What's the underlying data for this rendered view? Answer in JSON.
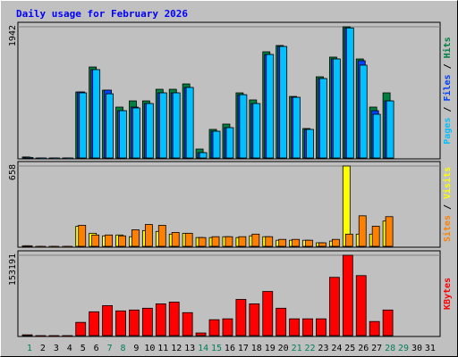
{
  "chart_data": {
    "type": "bar",
    "title": "Daily usage for February 2026",
    "categories": [
      "1",
      "2",
      "3",
      "4",
      "5",
      "6",
      "7",
      "8",
      "9",
      "10",
      "11",
      "12",
      "13",
      "14",
      "15",
      "16",
      "17",
      "18",
      "19",
      "20",
      "21",
      "22",
      "23",
      "24",
      "25",
      "26",
      "27",
      "28",
      "29",
      "30",
      "31"
    ],
    "category_colors": [
      "#00805c",
      "#000000",
      "#000000",
      "#000000",
      "#000000",
      "#000000",
      "#00805c",
      "#00805c",
      "#000000",
      "#000000",
      "#000000",
      "#000000",
      "#000000",
      "#00805c",
      "#00805c",
      "#000000",
      "#000000",
      "#000000",
      "#000000",
      "#000000",
      "#00805c",
      "#00805c",
      "#000000",
      "#000000",
      "#000000",
      "#000000",
      "#000000",
      "#00805c",
      "#00805c",
      "#000000",
      "#000000"
    ],
    "panels": [
      {
        "ylim": [
          0,
          1942
        ],
        "yticks": [
          1942
        ],
        "series": [
          {
            "name": "Hits",
            "color": "#008040",
            "values": [
              15,
              0,
              0,
              0,
              977,
              1347,
              1004,
              753,
              845,
              845,
              1017,
              1017,
              1096,
              132,
              423,
              502,
              964,
              859,
              1572,
              1665,
              911,
              436,
              1202,
              1493,
              1942,
              1466,
              753,
              964,
              null,
              null,
              null
            ]
          },
          {
            "name": "Files",
            "color": "#0040ff",
            "values": [
              10,
              0,
              0,
              0,
              977,
              1308,
              1004,
              700,
              753,
              806,
              964,
              964,
              1044,
              79,
              396,
              449,
              937,
              806,
              1532,
              1651,
              898,
              423,
              1176,
              1466,
              1925,
              1440,
              700,
              845,
              null,
              null,
              null
            ]
          },
          {
            "name": "Pages",
            "color": "#00c0ff",
            "values": [
              8,
              0,
              0,
              0,
              964,
              1308,
              950,
              700,
              740,
              806,
              964,
              964,
              1044,
              79,
              396,
              449,
              937,
              806,
              1532,
              1651,
              898,
              423,
              1176,
              1466,
              1925,
              1374,
              647,
              845,
              null,
              null,
              null
            ]
          }
        ]
      },
      {
        "ylim": [
          0,
          658
        ],
        "yticks": [
          658
        ],
        "series": [
          {
            "name": "Visits",
            "color": "#ffff00",
            "values": [
              5,
              0,
              0,
              0,
              164,
              107,
              86,
              93,
              79,
              129,
              122,
              100,
              107,
              72,
              72,
              79,
              72,
              86,
              79,
              50,
              50,
              50,
              29,
              43,
              658,
              100,
              100,
              207,
              null,
              null,
              null
            ]
          },
          {
            "name": "Sites",
            "color": "#ff8000",
            "values": [
              5,
              0,
              0,
              0,
              172,
              93,
              93,
              86,
              136,
              179,
              172,
              114,
              107,
              72,
              79,
              79,
              79,
              100,
              79,
              57,
              57,
              50,
              29,
              57,
              100,
              250,
              165,
              243,
              null,
              null,
              null
            ]
          }
        ]
      },
      {
        "ylim": [
          0,
          153191
        ],
        "yticks": [
          153191
        ],
        "series": [
          {
            "name": "KBytes",
            "color": "#ff0000",
            "values": [
              1500,
              0,
              0,
              0,
              25250,
              45450,
              57200,
              47100,
              48800,
              52200,
              60600,
              63900,
              43800,
              5000,
              30300,
              32000,
              69000,
              60600,
              84200,
              52200,
              32000,
              32000,
              32000,
              111100,
              153191,
              114400,
              26900,
              48800,
              null,
              null,
              null
            ]
          }
        ]
      }
    ]
  }
}
